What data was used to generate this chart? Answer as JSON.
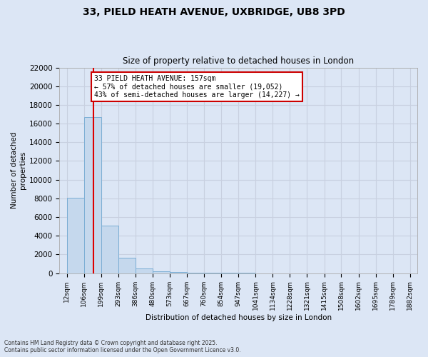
{
  "title1": "33, PIELD HEATH AVENUE, UXBRIDGE, UB8 3PD",
  "title2": "Size of property relative to detached houses in London",
  "xlabel": "Distribution of detached houses by size in London",
  "ylabel": "Number of detached\nproperties",
  "bin_edges": [
    12,
    106,
    199,
    293,
    386,
    480,
    573,
    667,
    760,
    854,
    947,
    1041,
    1134,
    1228,
    1321,
    1415,
    1508,
    1602,
    1695,
    1789,
    1882
  ],
  "bar_heights": [
    8100,
    16700,
    5100,
    1650,
    500,
    200,
    130,
    50,
    30,
    20,
    10,
    0,
    0,
    0,
    0,
    0,
    0,
    0,
    0,
    0
  ],
  "bar_color": "#c5d8ed",
  "bar_edge_color": "#7aadd4",
  "property_size": 157,
  "property_line_color": "#dd0000",
  "annotation_title": "33 PIELD HEATH AVENUE: 157sqm",
  "annotation_line1": "← 57% of detached houses are smaller (19,052)",
  "annotation_line2": "43% of semi-detached houses are larger (14,227) →",
  "annotation_box_color": "#ffffff",
  "annotation_box_edge": "#cc0000",
  "ylim": [
    0,
    22000
  ],
  "yticks": [
    0,
    2000,
    4000,
    6000,
    8000,
    10000,
    12000,
    14000,
    16000,
    18000,
    20000,
    22000
  ],
  "grid_color": "#c8d0e0",
  "bg_color": "#dce6f5",
  "footer1": "Contains HM Land Registry data © Crown copyright and database right 2025.",
  "footer2": "Contains public sector information licensed under the Open Government Licence v3.0."
}
